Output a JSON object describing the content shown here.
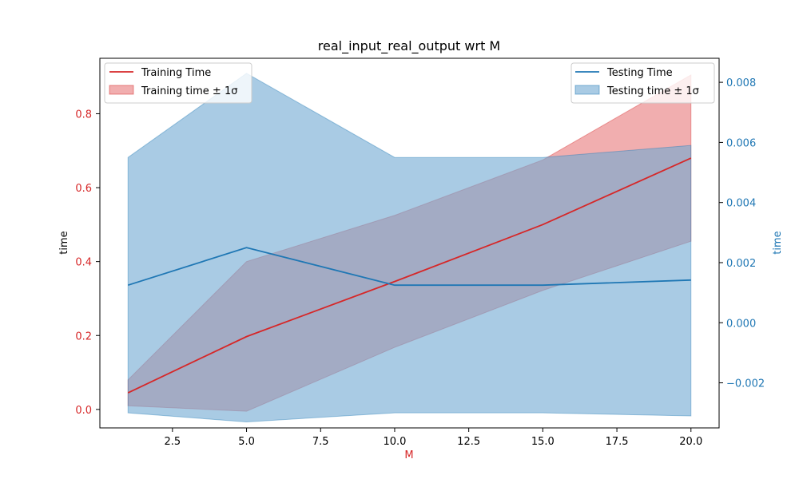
{
  "chart_data": {
    "type": "line",
    "title": "real_input_real_output wrt M",
    "xlabel": "M",
    "ylabel_left": "time",
    "ylabel_right": "time",
    "xlim": [
      0.05,
      20.95
    ],
    "ylim_left": [
      -0.05,
      0.95
    ],
    "ylim_right": [
      -0.0035,
      0.0088
    ],
    "x_ticks": [
      "2.5",
      "5.0",
      "7.5",
      "10.0",
      "12.5",
      "15.0",
      "17.5",
      "20.0"
    ],
    "y_ticks_left": [
      "0.0",
      "0.2",
      "0.4",
      "0.6",
      "0.8"
    ],
    "y_ticks_right": [
      "−0.002",
      "0.000",
      "0.002",
      "0.004",
      "0.006",
      "0.008"
    ],
    "x": [
      1,
      5,
      10,
      15,
      20
    ],
    "series": [
      {
        "name": "Training Time",
        "axis": "left",
        "values": [
          0.045,
          0.197,
          0.346,
          0.5,
          0.68
        ],
        "band_name": "Training time ± 1σ",
        "upper": [
          0.08,
          0.4,
          0.525,
          0.675,
          0.905
        ],
        "lower": [
          0.01,
          -0.005,
          0.168,
          0.322,
          0.455
        ],
        "color": "#d62728",
        "band_color": "#e8787a"
      },
      {
        "name": "Testing Time",
        "axis": "right",
        "values": [
          0.00125,
          0.0025,
          0.00125,
          0.00125,
          0.00142
        ],
        "band_name": "Testing time ± 1σ",
        "upper": [
          0.0055,
          0.0083,
          0.0055,
          0.0055,
          0.0059
        ],
        "lower": [
          -0.003,
          -0.0033,
          -0.003,
          -0.003,
          -0.0031
        ],
        "color": "#1f77b4",
        "band_color": "#6fa8d2"
      }
    ],
    "legend_left_placement": "upper-left",
    "legend_right_placement": "upper-right",
    "left_tick_color": "#d62728",
    "right_tick_color": "#1f77b4",
    "grid": false
  }
}
